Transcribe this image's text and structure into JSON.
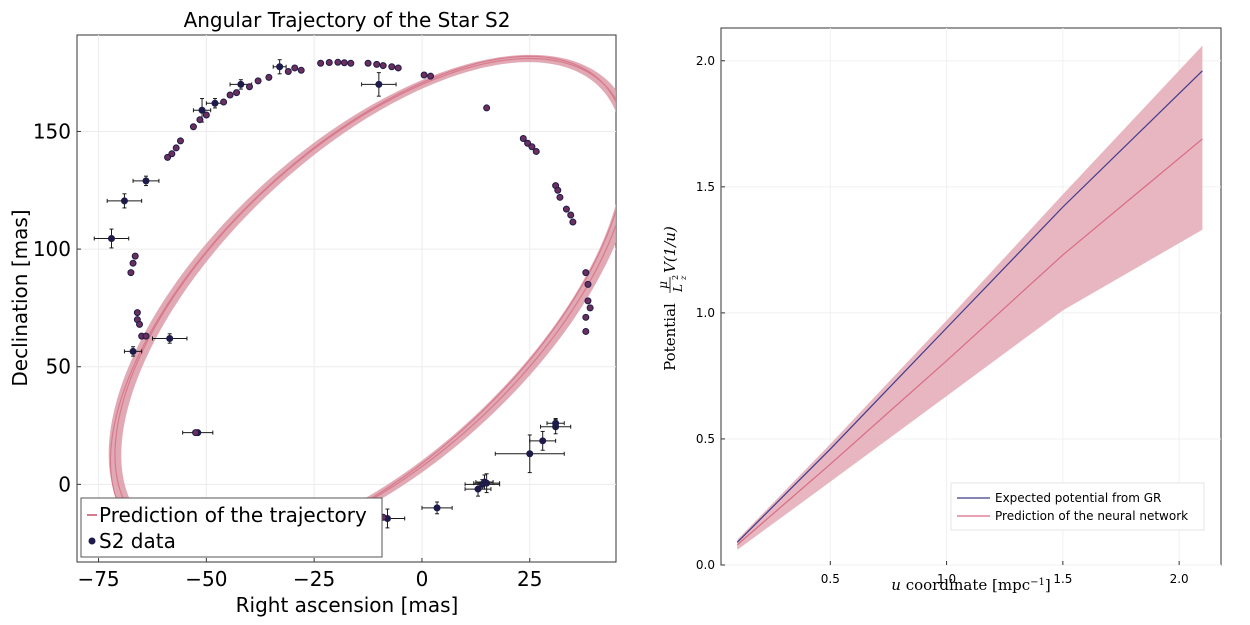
{
  "chart_data": [
    {
      "type": "scatter",
      "title": "Angular Trajectory of the Star S2",
      "xlabel": "Right ascension [mas]",
      "ylabel": "Declination [mas]",
      "xlim": [
        -80,
        45
      ],
      "ylim": [
        -33,
        191
      ],
      "xticks": [
        -75,
        -50,
        -25,
        0,
        25
      ],
      "yticks": [
        0,
        50,
        100,
        150
      ],
      "grid": true,
      "legend_position": "bottom-left",
      "legend": [
        "Prediction of the trajectory",
        "S2 data"
      ],
      "colors": {
        "data": "#1e1b4b",
        "data_inner": "#6b2f5c",
        "prediction": "#d87a8e",
        "band": "#dc9aa7",
        "errorbar": "#1a1a1a"
      },
      "series": [
        {
          "name": "Prediction of the trajectory",
          "kind": "ellipse-band",
          "ellipse": {
            "cx": -11.5,
            "cy": 76.5,
            "a": 44.1,
            "b": 112.0,
            "angle_deg": -23.0
          },
          "band_halfwidth_mas": 1.6
        },
        {
          "name": "S2 data",
          "kind": "points",
          "points": [
            {
              "x": -33.0,
              "y": 177.5,
              "ex": 1.5,
              "ey": 3.0
            },
            {
              "x": -10.0,
              "y": 170.0,
              "ex": 4.0,
              "ey": 5.0
            },
            {
              "x": -42.0,
              "y": 170.0,
              "ex": 2.5,
              "ey": 2.0
            },
            {
              "x": -48.0,
              "y": 162.0,
              "ex": 2.0,
              "ey": 2.0
            },
            {
              "x": -51.0,
              "y": 159.0,
              "ex": 2.0,
              "ey": 5.0
            },
            {
              "x": -64.0,
              "y": 129.0,
              "ex": 3.0,
              "ey": 2.0
            },
            {
              "x": -69.0,
              "y": 120.5,
              "ex": 4.0,
              "ey": 3.0
            },
            {
              "x": -72.0,
              "y": 104.5,
              "ex": 4.0,
              "ey": 4.0
            },
            {
              "x": -58.5,
              "y": 62.0,
              "ex": 4.0,
              "ey": 2.0
            },
            {
              "x": -67.0,
              "y": 56.5,
              "ex": 2.0,
              "ey": 2.0
            },
            {
              "x": -52.0,
              "y": 22.0,
              "ex": 3.5,
              "ey": 1.0
            },
            {
              "x": -8.0,
              "y": -14.5,
              "ex": 4.0,
              "ey": 4.0
            },
            {
              "x": 3.5,
              "y": -10.0,
              "ex": 3.5,
              "ey": 2.5
            },
            {
              "x": 13.0,
              "y": -2.0,
              "ex": 3.0,
              "ey": 3.0
            },
            {
              "x": 14.0,
              "y": 0.0,
              "ex": 4.0,
              "ey": 2.0
            },
            {
              "x": 15.0,
              "y": 0.5,
              "ex": 3.0,
              "ey": 4.0
            },
            {
              "x": 14.5,
              "y": 1.0,
              "ex": 2.0,
              "ey": 3.0
            },
            {
              "x": 25.0,
              "y": 13.0,
              "ex": 8.0,
              "ey": 8.0
            },
            {
              "x": 28.0,
              "y": 18.5,
              "ex": 3.0,
              "ey": 4.0
            },
            {
              "x": 31.0,
              "y": 24.5,
              "ex": 3.5,
              "ey": 3.0
            },
            {
              "x": 31.0,
              "y": 26.0,
              "ex": 2.0,
              "ey": 2.0
            },
            {
              "x": -23.5,
              "y": 179.0
            },
            {
              "x": -21.5,
              "y": 179.3
            },
            {
              "x": -19.5,
              "y": 179.4
            },
            {
              "x": -18.0,
              "y": 179.2
            },
            {
              "x": -16.5,
              "y": 179.0
            },
            {
              "x": -12.5,
              "y": 179.0
            },
            {
              "x": -10.5,
              "y": 178.5
            },
            {
              "x": -9.0,
              "y": 178.0
            },
            {
              "x": -7.0,
              "y": 177.5
            },
            {
              "x": -5.5,
              "y": 177.0
            },
            {
              "x": 0.5,
              "y": 174.0
            },
            {
              "x": 2.0,
              "y": 173.5
            },
            {
              "x": -28.0,
              "y": 176.0
            },
            {
              "x": -31.0,
              "y": 175.5
            },
            {
              "x": -29.5,
              "y": 177.0
            },
            {
              "x": -35.5,
              "y": 173.0
            },
            {
              "x": -38.0,
              "y": 171.5
            },
            {
              "x": -40.0,
              "y": 169.0
            },
            {
              "x": -43.0,
              "y": 166.5
            },
            {
              "x": -44.5,
              "y": 165.5
            },
            {
              "x": -46.0,
              "y": 162.5
            },
            {
              "x": -50.0,
              "y": 157.0
            },
            {
              "x": -51.5,
              "y": 155.0
            },
            {
              "x": -53.0,
              "y": 152.0
            },
            {
              "x": -56.0,
              "y": 146.0
            },
            {
              "x": -57.0,
              "y": 143.0
            },
            {
              "x": -58.0,
              "y": 140.5
            },
            {
              "x": -59.0,
              "y": 139.0
            },
            {
              "x": 15.0,
              "y": 160.0
            },
            {
              "x": 23.5,
              "y": 147.0
            },
            {
              "x": 24.5,
              "y": 145.0
            },
            {
              "x": 25.5,
              "y": 143.5
            },
            {
              "x": 26.5,
              "y": 141.5
            },
            {
              "x": 31.0,
              "y": 127.0
            },
            {
              "x": 31.5,
              "y": 125.0
            },
            {
              "x": 32.0,
              "y": 122.0
            },
            {
              "x": 33.5,
              "y": 117.0
            },
            {
              "x": 34.5,
              "y": 114.5
            },
            {
              "x": 35.0,
              "y": 111.5
            },
            {
              "x": 38.0,
              "y": 90.0
            },
            {
              "x": 38.5,
              "y": 85.0
            },
            {
              "x": 38.5,
              "y": 78.0
            },
            {
              "x": 39.0,
              "y": 75.0
            },
            {
              "x": 38.0,
              "y": 71.0
            },
            {
              "x": 38.0,
              "y": 65.0
            },
            {
              "x": -66.5,
              "y": 97.0
            },
            {
              "x": -67.0,
              "y": 94.0
            },
            {
              "x": -67.5,
              "y": 90.0
            },
            {
              "x": -66.0,
              "y": 73.0
            },
            {
              "x": -66.0,
              "y": 70.0
            },
            {
              "x": -65.5,
              "y": 68.0
            },
            {
              "x": -65.0,
              "y": 63.0
            },
            {
              "x": -64.0,
              "y": 63.0
            },
            {
              "x": -52.5,
              "y": 22.0
            },
            {
              "x": -9.0,
              "y": -14.0
            }
          ]
        }
      ]
    },
    {
      "type": "line",
      "title": "",
      "xlabel_math": "u",
      "xlabel_text": " coordinate [mpc",
      "xlabel_exp": "−1",
      "xlabel_close": "]",
      "ylabel_text": "Potential",
      "ylabel_frac_num": "μ",
      "ylabel_frac_den": "L",
      "ylabel_frac_den_sup": "2",
      "ylabel_frac_den_sub": "z",
      "ylabel_expr": "V(1/u)",
      "xlim": [
        0.03,
        2.18
      ],
      "ylim": [
        0.0,
        2.13
      ],
      "xticks": [
        0.5,
        1.0,
        1.5,
        2.0
      ],
      "xtick_labels": [
        "0.5",
        "1.0",
        "1.5",
        "2.0"
      ],
      "yticks": [
        0.0,
        0.5,
        1.0,
        1.5,
        2.0
      ],
      "ytick_labels": [
        "0.0",
        "0.5",
        "1.0",
        "1.5",
        "2.0"
      ],
      "grid": true,
      "legend_position": "bottom-right",
      "colors": {
        "gr": "#3f3a8a",
        "nn": "#d96b84",
        "band": "#e4a9b5"
      },
      "x": [
        0.1,
        0.5,
        1.0,
        1.5,
        2.1
      ],
      "series": [
        {
          "name": "Expected potential from GR",
          "values": [
            0.09,
            0.46,
            0.94,
            1.42,
            1.96
          ]
        },
        {
          "name": "Prediction of the neural network",
          "values": [
            0.08,
            0.4,
            0.81,
            1.23,
            1.69
          ],
          "band_lower": [
            0.06,
            0.33,
            0.67,
            1.01,
            1.33
          ],
          "band_upper": [
            0.1,
            0.48,
            0.97,
            1.47,
            2.06
          ]
        }
      ]
    }
  ]
}
